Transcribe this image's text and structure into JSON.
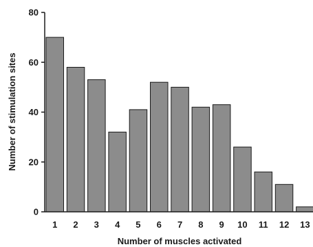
{
  "chart_data": {
    "type": "bar",
    "categories": [
      "1",
      "2",
      "3",
      "4",
      "5",
      "6",
      "7",
      "8",
      "9",
      "10",
      "11",
      "12",
      "13"
    ],
    "values": [
      70,
      58,
      53,
      32,
      41,
      52,
      50,
      42,
      43,
      26,
      16,
      11,
      2
    ],
    "xlabel": "Number of muscles activated",
    "ylabel": "Number of stimulation sites",
    "ylim": [
      0,
      80
    ],
    "yticks": [
      0,
      20,
      40,
      60,
      80
    ],
    "grid": false,
    "legend": "none",
    "bar_color": "#8c8c8c",
    "edge_color": "#1a1a1a"
  }
}
